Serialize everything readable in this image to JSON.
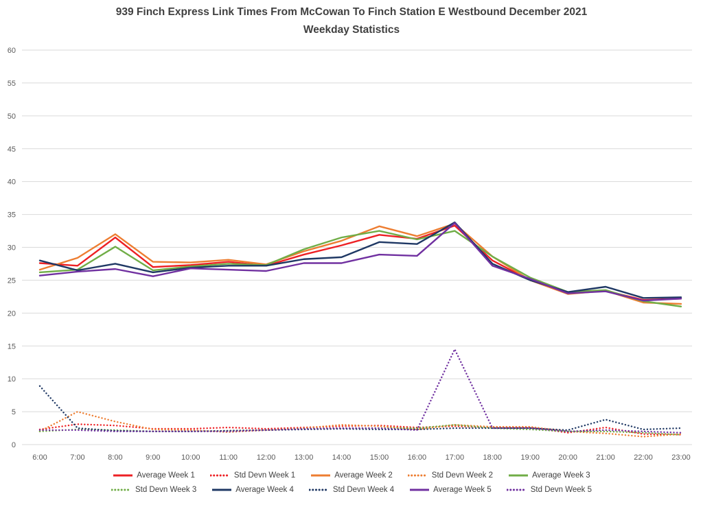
{
  "chart_data": {
    "type": "line",
    "title": "939 Finch Express Link Times From McCowan To Finch Station E Westbound December 2021",
    "subtitle": "Weekday Statistics",
    "x": [
      "6:00",
      "7:00",
      "8:00",
      "9:00",
      "10:00",
      "11:00",
      "12:00",
      "13:00",
      "14:00",
      "15:00",
      "16:00",
      "17:00",
      "18:00",
      "19:00",
      "20:00",
      "21:00",
      "22:00",
      "23:00"
    ],
    "xlabel": "",
    "ylabel": "",
    "ylim": [
      0,
      60
    ],
    "ytick_step": 5,
    "grid": true,
    "gridline_color": "#d9d9d9",
    "axis_text_color": "#595959",
    "legend_position": "bottom",
    "series": [
      {
        "name": "Average Week 1",
        "color": "#ed2024",
        "style": "solid",
        "values": [
          27.6,
          27.2,
          31.5,
          27.0,
          27.3,
          27.8,
          27.2,
          28.9,
          30.3,
          31.9,
          31.3,
          33.3,
          28.0,
          25.0,
          23.0,
          23.4,
          22.0,
          22.2
        ]
      },
      {
        "name": "Std Devn Week 1",
        "color": "#ed2024",
        "style": "dotted",
        "values": [
          2.3,
          3.1,
          2.9,
          2.4,
          2.4,
          2.6,
          2.4,
          2.6,
          2.8,
          2.9,
          2.6,
          2.8,
          2.6,
          2.6,
          1.8,
          2.6,
          1.6,
          1.5
        ]
      },
      {
        "name": "Average Week 2",
        "color": "#ed7d31",
        "style": "solid",
        "values": [
          26.6,
          28.4,
          32.0,
          27.8,
          27.7,
          28.1,
          27.4,
          29.4,
          31.0,
          33.2,
          31.7,
          33.6,
          28.6,
          25.0,
          22.9,
          23.4,
          21.6,
          21.4
        ]
      },
      {
        "name": "Std Devn Week 2",
        "color": "#ed7d31",
        "style": "dotted",
        "values": [
          2.0,
          5.0,
          3.5,
          2.3,
          2.2,
          1.9,
          2.2,
          2.5,
          3.0,
          2.8,
          2.3,
          3.0,
          2.7,
          2.7,
          2.0,
          1.7,
          1.2,
          1.6
        ]
      },
      {
        "name": "Average Week 3",
        "color": "#70ad47",
        "style": "solid",
        "values": [
          26.2,
          26.6,
          30.1,
          26.5,
          27.1,
          27.5,
          27.3,
          29.7,
          31.5,
          32.5,
          31.2,
          32.5,
          28.6,
          25.4,
          23.2,
          23.5,
          21.8,
          21.0
        ]
      },
      {
        "name": "Std Devn Week 3",
        "color": "#70ad47",
        "style": "dotted",
        "values": [
          2.0,
          2.3,
          2.2,
          2.0,
          2.0,
          2.1,
          2.2,
          2.4,
          2.5,
          2.5,
          2.5,
          3.0,
          2.5,
          2.3,
          2.0,
          2.0,
          1.8,
          1.5
        ]
      },
      {
        "name": "Average Week 4",
        "color": "#1f3864",
        "style": "solid",
        "values": [
          28.0,
          26.5,
          27.5,
          26.2,
          26.9,
          27.2,
          27.2,
          28.2,
          28.5,
          30.8,
          30.5,
          33.8,
          27.5,
          25.0,
          23.2,
          24.0,
          22.3,
          22.4
        ]
      },
      {
        "name": "Std Devn Week 4",
        "color": "#1f3864",
        "style": "dotted",
        "values": [
          8.9,
          2.5,
          2.1,
          2.0,
          2.0,
          2.1,
          2.2,
          2.3,
          2.4,
          2.3,
          2.3,
          2.5,
          2.5,
          2.5,
          2.2,
          3.8,
          2.3,
          2.5
        ]
      },
      {
        "name": "Average Week 5",
        "color": "#7030a0",
        "style": "solid",
        "values": [
          25.7,
          26.3,
          26.7,
          25.6,
          26.8,
          26.6,
          26.4,
          27.6,
          27.6,
          28.9,
          28.7,
          33.7,
          27.2,
          25.2,
          23.0,
          23.3,
          21.9,
          22.2
        ]
      },
      {
        "name": "Std Devn Week 5",
        "color": "#7030a0",
        "style": "dotted",
        "values": [
          2.2,
          2.2,
          2.0,
          2.0,
          2.0,
          2.0,
          2.2,
          2.4,
          2.5,
          2.5,
          2.2,
          14.5,
          2.5,
          2.5,
          2.0,
          2.2,
          2.0,
          1.8
        ]
      }
    ]
  }
}
